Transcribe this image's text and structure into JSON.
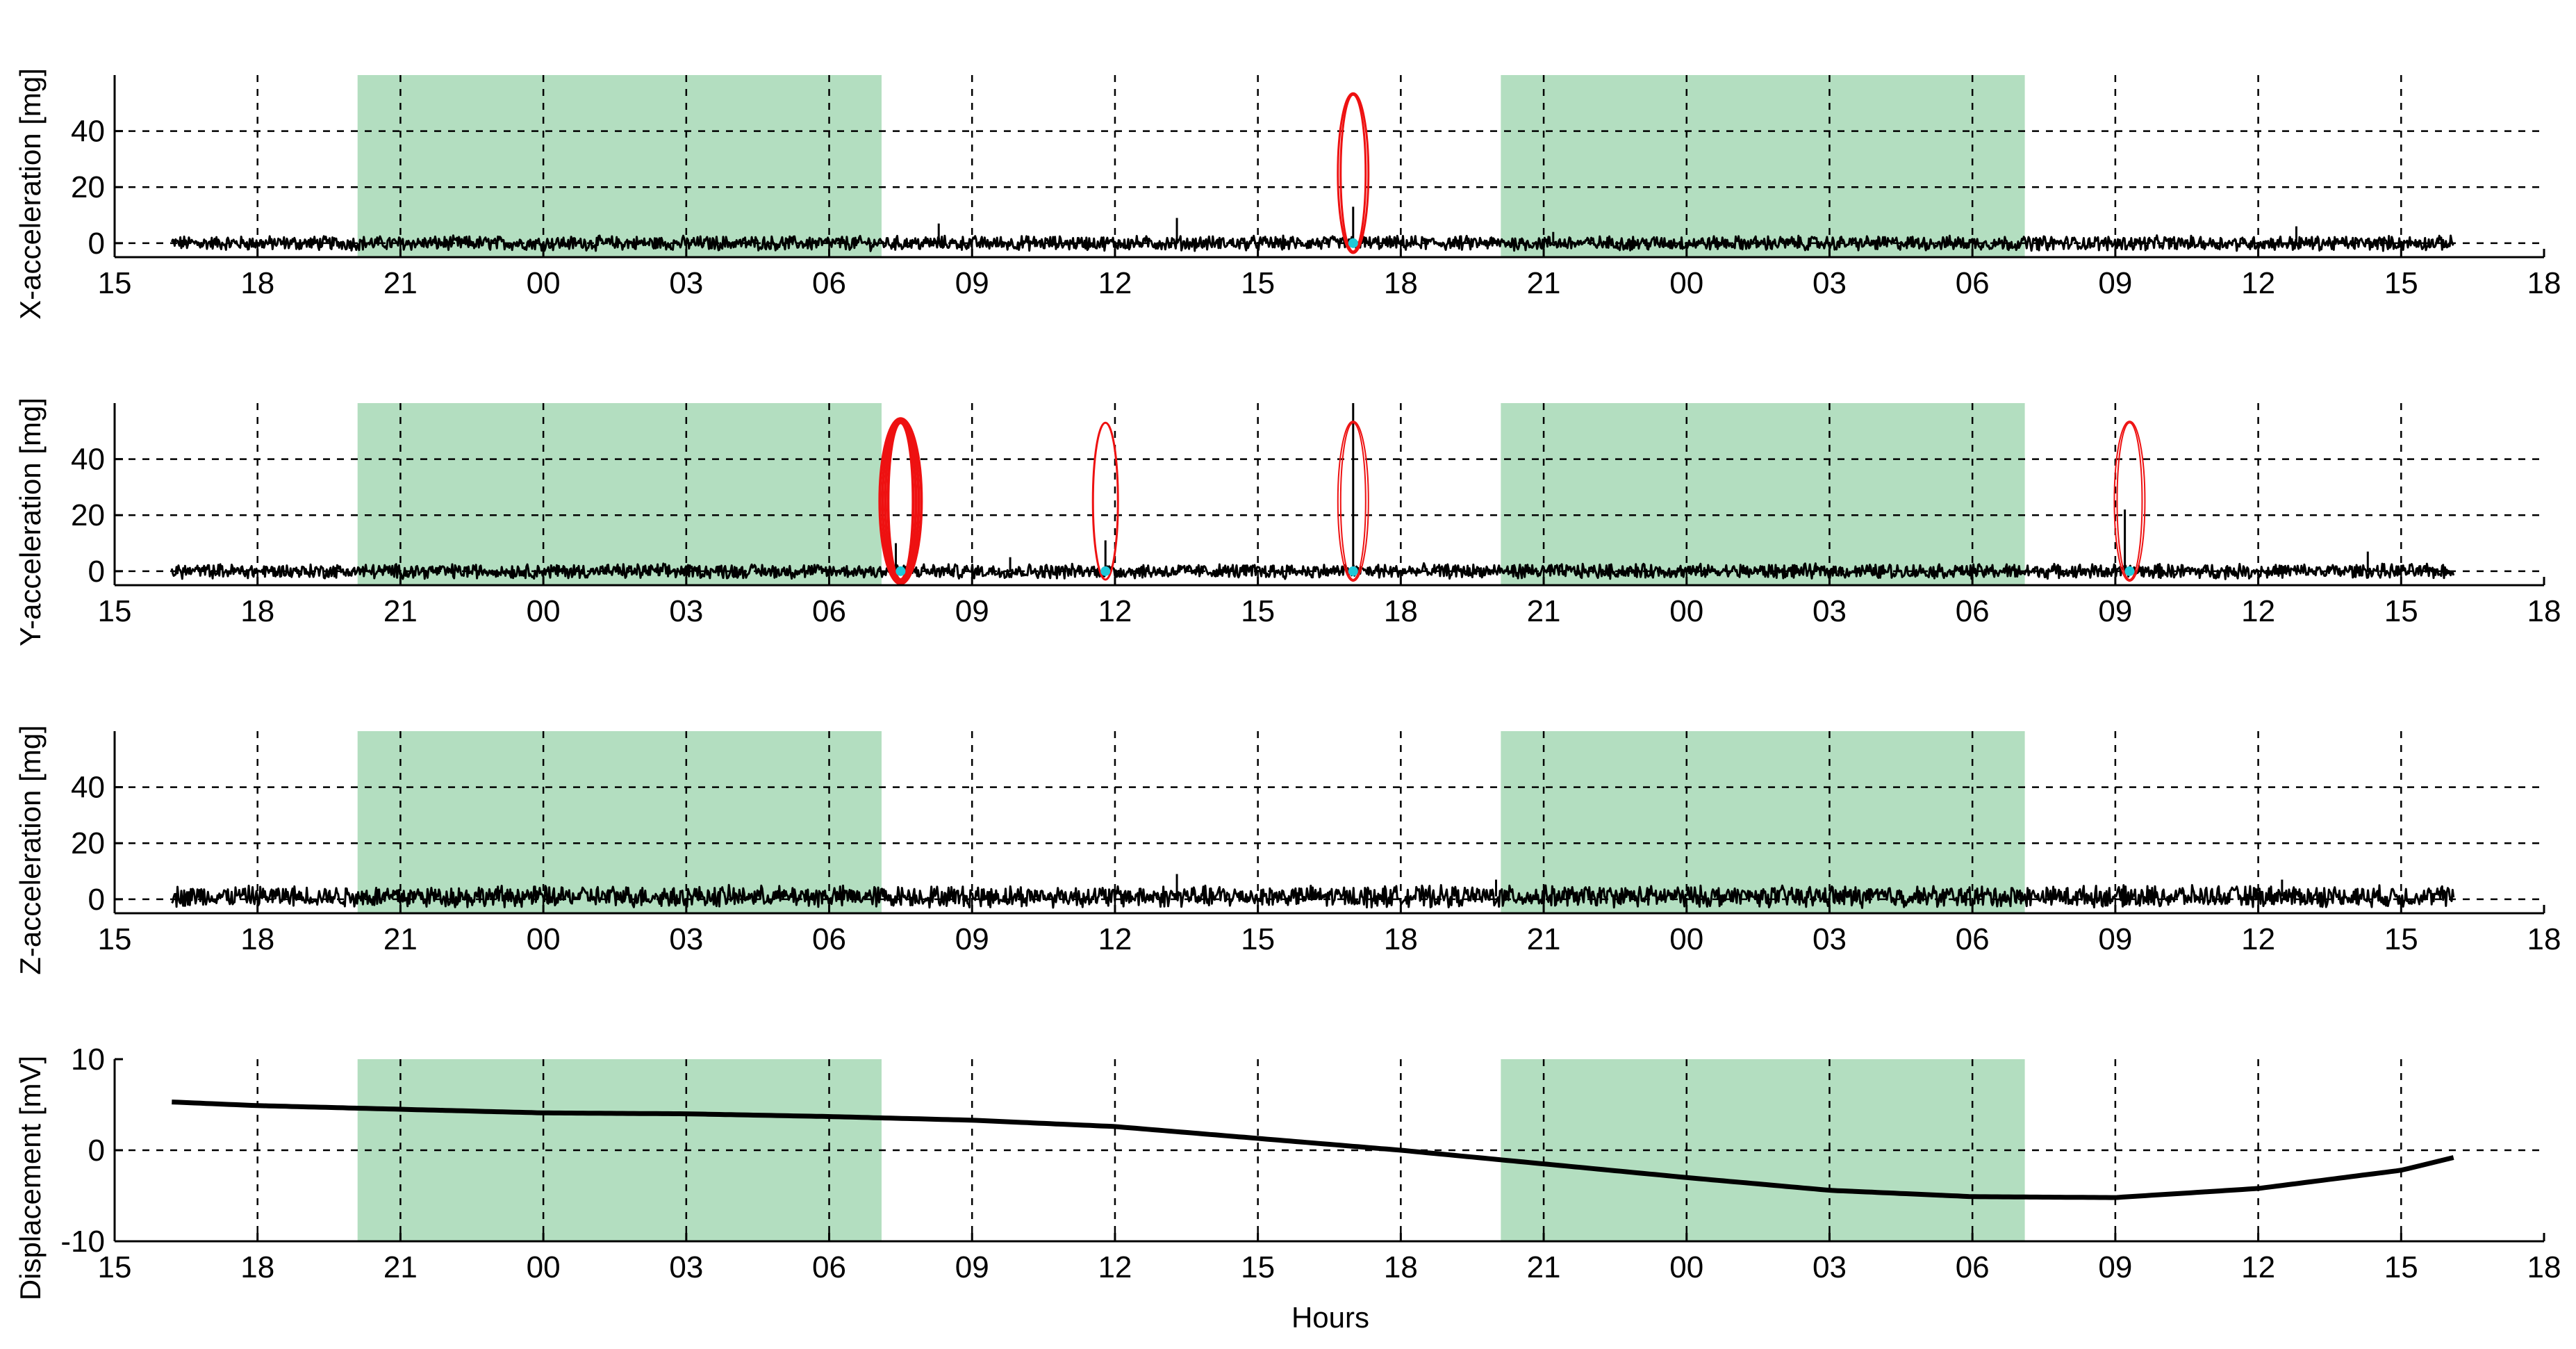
{
  "chart_data": {
    "type": "line",
    "shared_x": {
      "xlabel": "Hours",
      "xlim_hours": [
        15,
        66
      ],
      "tick_hours": [
        15,
        18,
        21,
        24,
        27,
        30,
        33,
        36,
        39,
        42,
        45,
        48,
        51,
        54,
        57,
        60,
        63,
        66
      ],
      "tick_labels": [
        "15",
        "18",
        "21",
        "00",
        "03",
        "06",
        "09",
        "12",
        "15",
        "18",
        "21",
        "00",
        "03",
        "06",
        "09",
        "12",
        "15",
        "18"
      ],
      "data_range_hours": [
        16.2,
        64.1
      ],
      "shaded_periods_hours": [
        [
          20.1,
          31.1
        ],
        [
          44.1,
          55.1
        ]
      ],
      "shade_color": "#b3dec0"
    },
    "subplots": [
      {
        "id": "x",
        "ylabel": "X-acceleration [mg]",
        "ylim": [
          -5,
          60
        ],
        "yticks": [
          0,
          20,
          40
        ],
        "yticklabels": [
          "0",
          "20",
          "40"
        ],
        "grid": true,
        "baseline": 0,
        "noise_amplitude": 2.2,
        "spikes": [
          {
            "x": 32.3,
            "y": 7
          },
          {
            "x": 37.3,
            "y": 9
          },
          {
            "x": 41.0,
            "y": 13
          },
          {
            "x": 45.2,
            "y": 4
          },
          {
            "x": 60.8,
            "y": 6
          }
        ],
        "markers": [
          {
            "x": 41.0,
            "color": "#ee1111",
            "rings": 2,
            "stroke": 3
          }
        ]
      },
      {
        "id": "y",
        "ylabel": "Y-acceleration [mg]",
        "ylim": [
          -5,
          60
        ],
        "yticks": [
          0,
          20,
          40
        ],
        "yticklabels": [
          "0",
          "20",
          "40"
        ],
        "grid": true,
        "baseline": 0,
        "noise_amplitude": 2.2,
        "spikes": [
          {
            "x": 31.4,
            "y": 10
          },
          {
            "x": 31.7,
            "y": 8
          },
          {
            "x": 33.8,
            "y": 5
          },
          {
            "x": 35.8,
            "y": 11
          },
          {
            "x": 41.0,
            "y": 60
          },
          {
            "x": 57.2,
            "y": 22
          },
          {
            "x": 62.3,
            "y": 7
          }
        ],
        "markers": [
          {
            "x": 31.5,
            "color": "#ee1111",
            "rings": 4,
            "stroke": 4
          },
          {
            "x": 35.8,
            "color": "#ee1111",
            "rings": 1,
            "stroke": 3
          },
          {
            "x": 41.0,
            "color": "#ee1111",
            "rings": 2,
            "stroke": 2
          },
          {
            "x": 57.3,
            "color": "#ee1111",
            "rings": 2,
            "stroke": 2
          }
        ]
      },
      {
        "id": "z",
        "ylabel": "Z-acceleration [mg]",
        "ylim": [
          -5,
          60
        ],
        "yticks": [
          0,
          20,
          40
        ],
        "yticklabels": [
          "0",
          "20",
          "40"
        ],
        "grid": true,
        "baseline": 1,
        "noise_amplitude": 3.2,
        "spikes": [
          {
            "x": 37.3,
            "y": 9
          },
          {
            "x": 44.0,
            "y": 7
          },
          {
            "x": 60.5,
            "y": 7
          }
        ],
        "markers": []
      },
      {
        "id": "d",
        "ylabel": "Displacement [mV]",
        "ylim": [
          -10,
          10
        ],
        "yticks": [
          -10,
          0,
          10
        ],
        "yticklabels": [
          "-10",
          "0",
          "10"
        ],
        "grid": true,
        "curve": {
          "x": [
            16.2,
            18,
            21,
            24,
            27,
            30,
            33,
            36,
            39,
            42,
            45,
            48,
            51,
            54,
            57,
            60,
            63,
            64.1
          ],
          "y": [
            5.3,
            4.9,
            4.5,
            4.1,
            4.0,
            3.7,
            3.3,
            2.6,
            1.3,
            0.0,
            -1.5,
            -3.0,
            -4.4,
            -5.1,
            -5.2,
            -4.2,
            -2.2,
            -0.8
          ]
        }
      }
    ],
    "colors": {
      "trace": "#000000",
      "marker": "#ee1111",
      "marker_dot": "#20c8d8"
    }
  }
}
